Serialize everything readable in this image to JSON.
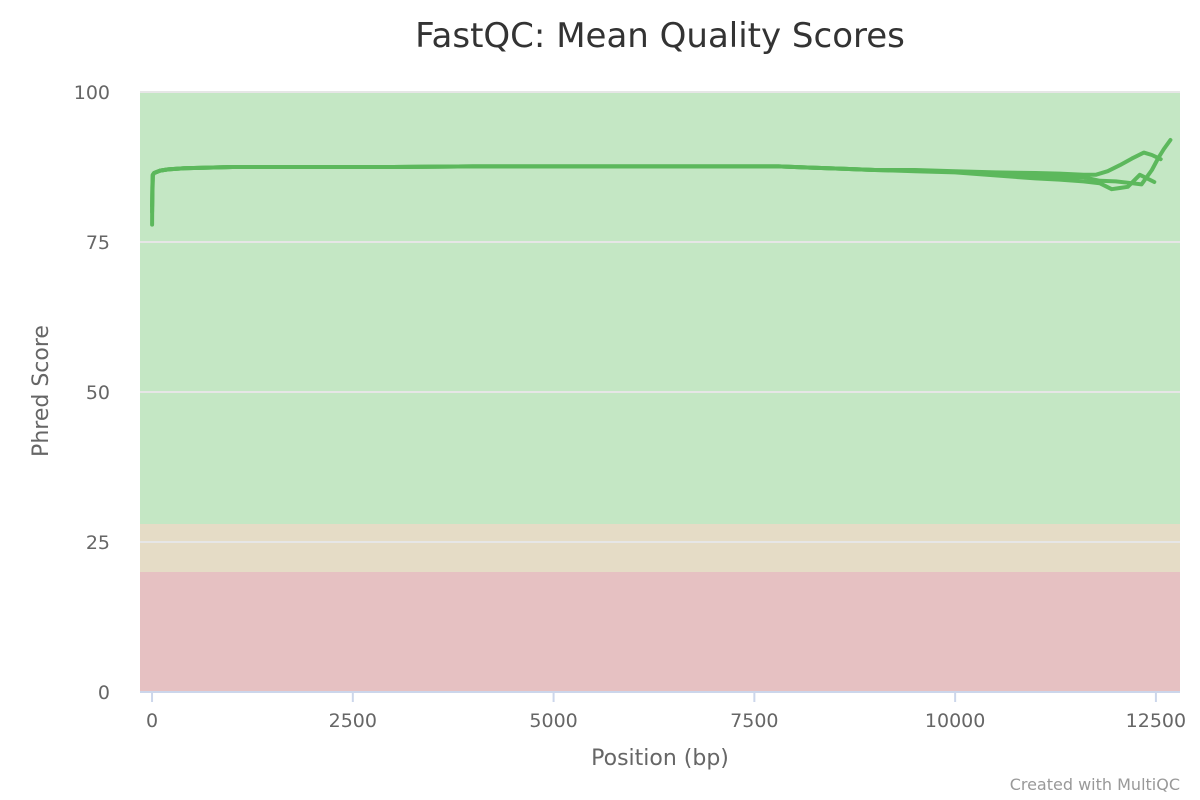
{
  "chart_data": {
    "type": "line",
    "title": "FastQC: Mean Quality Scores",
    "xlabel": "Position (bp)",
    "ylabel": "Phred Score",
    "xlim": [
      -150,
      12800
    ],
    "ylim": [
      0,
      100
    ],
    "xticks": [
      0,
      2500,
      5000,
      7500,
      10000,
      12500
    ],
    "yticks": [
      0,
      25,
      50,
      75,
      100
    ],
    "grid": true,
    "legend": "none",
    "zones": [
      {
        "from": 0,
        "to": 20,
        "color": "#e6c1c2"
      },
      {
        "from": 20,
        "to": 28,
        "color": "#e5dcc6"
      },
      {
        "from": 28,
        "to": 100,
        "color": "#c4e7c4"
      }
    ],
    "line_color": "#5cb85c",
    "series": [
      {
        "x": [
          1,
          3,
          10,
          25,
          100,
          200,
          400,
          1000,
          2000,
          3000,
          4000,
          5000,
          6000,
          7000,
          7800,
          8200,
          8600,
          9000,
          9500,
          10000,
          10500,
          11000,
          11300,
          11600,
          11800,
          11950,
          12050,
          12150,
          12300,
          12480
        ],
        "y": [
          77.9,
          84,
          86.1,
          86.5,
          86.9,
          87.1,
          87.3,
          87.5,
          87.5,
          87.5,
          87.6,
          87.6,
          87.6,
          87.6,
          87.6,
          87.4,
          87.2,
          87.0,
          86.8,
          86.6,
          86.1,
          85.6,
          85.4,
          85.1,
          84.8,
          83.8,
          84.0,
          84.2,
          86.2,
          85.0
        ]
      },
      {
        "x": [
          1,
          10,
          25,
          100,
          200,
          400,
          1000,
          2000,
          3000,
          4000,
          5000,
          6000,
          7000,
          7800,
          8200,
          8600,
          9000,
          9500,
          10000,
          10500,
          11000,
          11300,
          11600,
          11800,
          12000,
          12200,
          12320,
          12450,
          12530,
          12600,
          12680
        ],
        "y": [
          80,
          86.2,
          86.5,
          86.9,
          87.1,
          87.3,
          87.5,
          87.5,
          87.5,
          87.6,
          87.6,
          87.6,
          87.6,
          87.6,
          87.4,
          87.2,
          87.0,
          86.9,
          86.7,
          86.4,
          86.0,
          85.9,
          85.8,
          85.2,
          85.1,
          84.8,
          84.6,
          87.0,
          89.0,
          90.5,
          92.0
        ]
      },
      {
        "x": [
          1,
          10,
          25,
          100,
          200,
          400,
          1000,
          2000,
          3000,
          4000,
          5000,
          6000,
          7000,
          7800,
          8200,
          8600,
          9000,
          9500,
          10000,
          10500,
          11000,
          11300,
          11600,
          11750,
          11900,
          12050,
          12200,
          12350,
          12450,
          12560
        ],
        "y": [
          81,
          86.2,
          86.5,
          86.9,
          87.1,
          87.3,
          87.5,
          87.5,
          87.5,
          87.6,
          87.6,
          87.6,
          87.6,
          87.6,
          87.4,
          87.2,
          87.0,
          87.0,
          86.8,
          86.6,
          86.5,
          86.4,
          86.2,
          86.2,
          86.8,
          87.8,
          88.9,
          89.9,
          89.5,
          88.8
        ]
      }
    ],
    "credit": "Created with MultiQC"
  }
}
